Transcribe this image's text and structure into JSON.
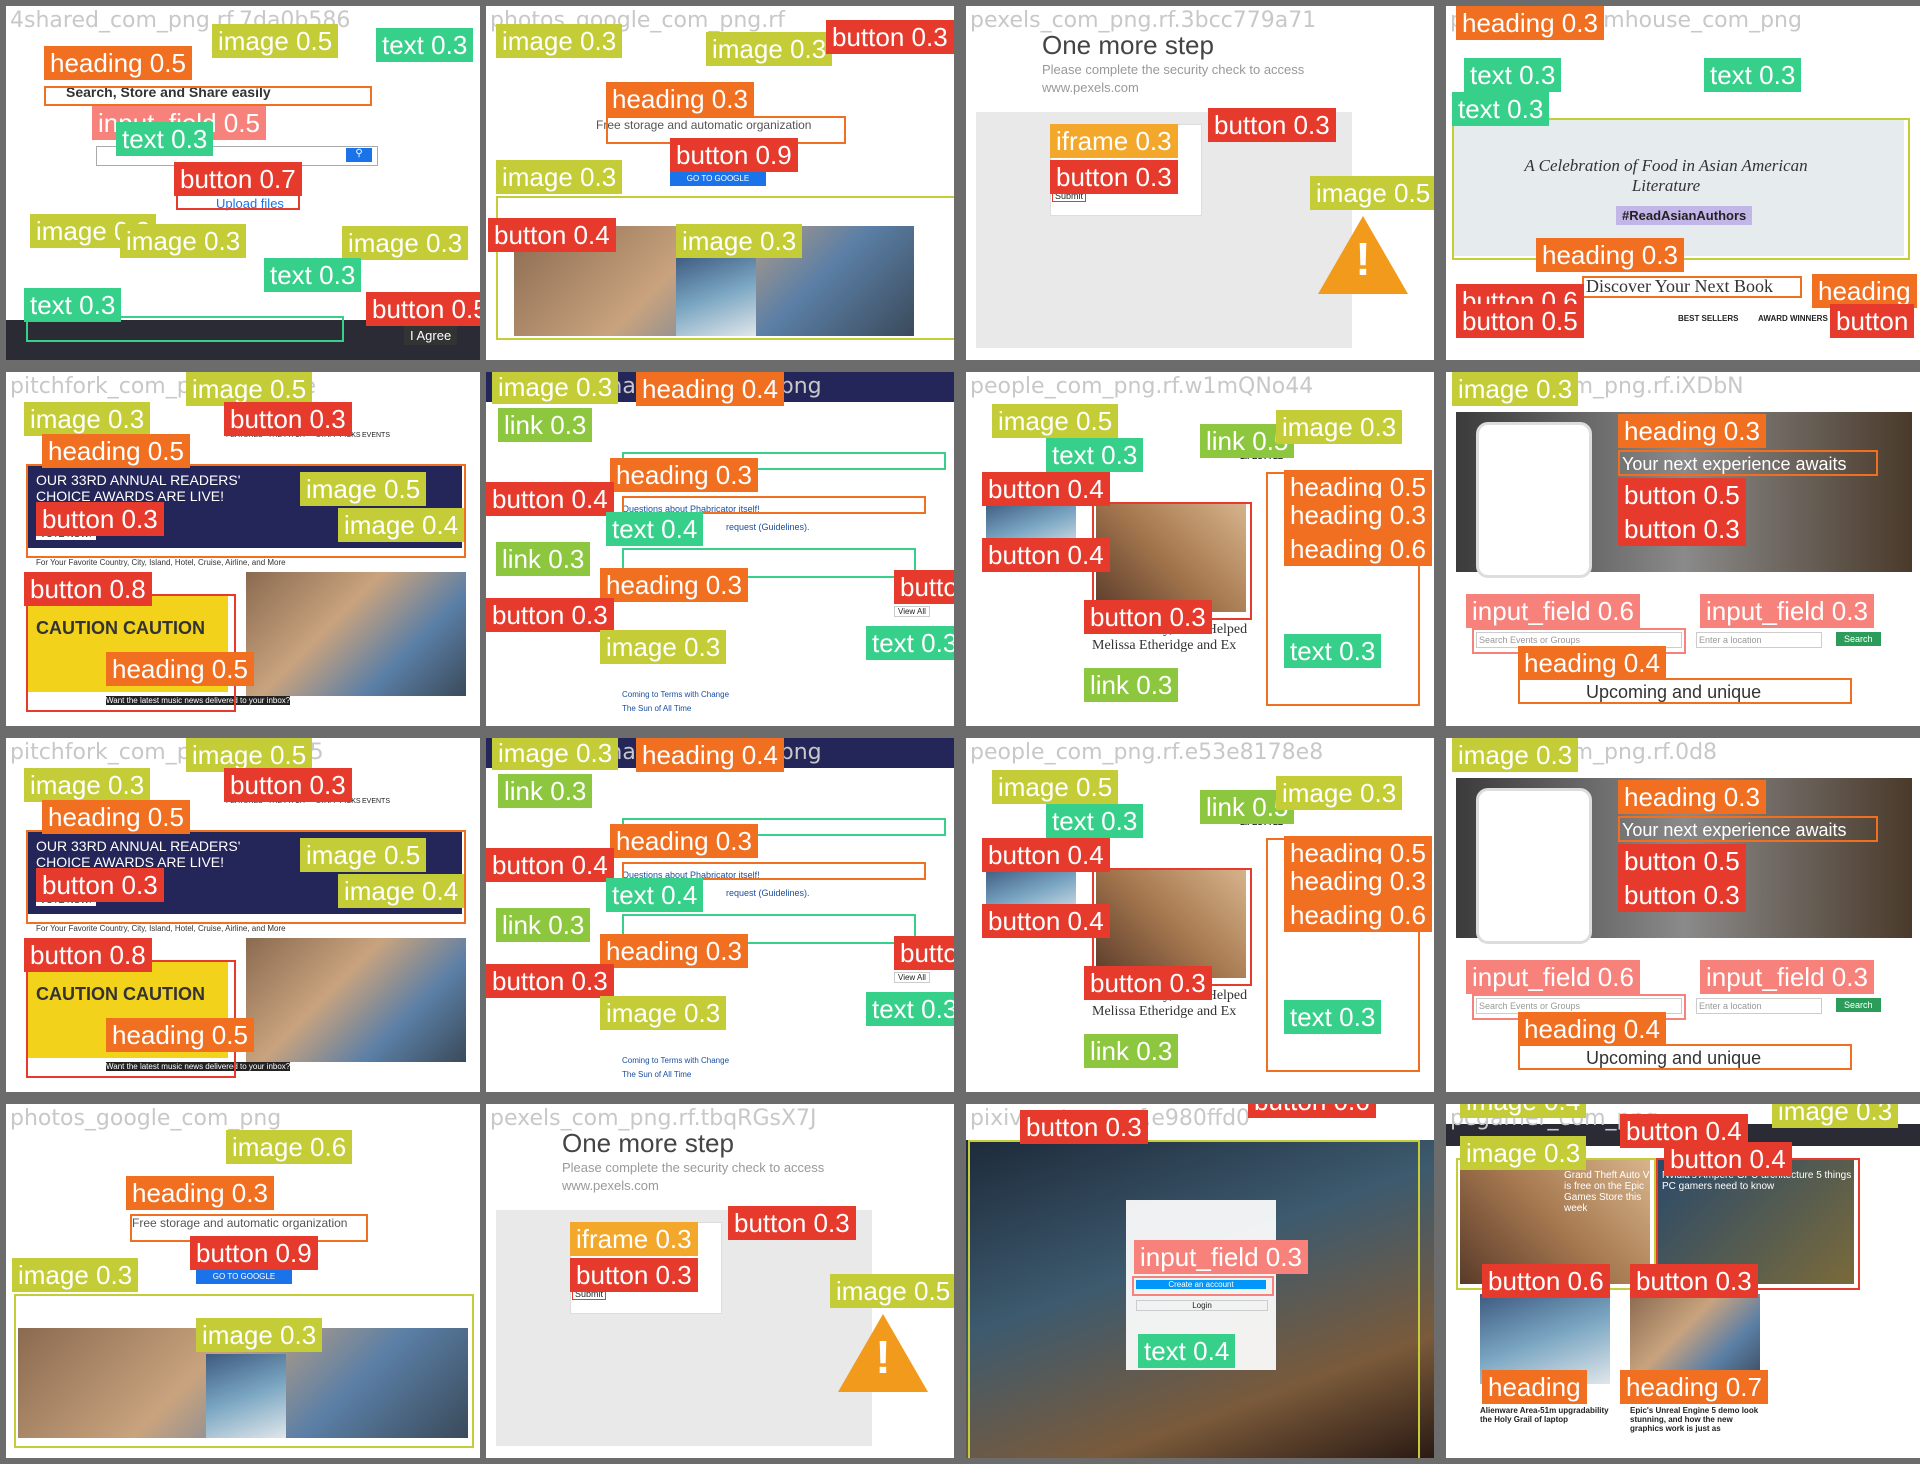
{
  "tiles": [
    {
      "watermark": "4shared_com_png.rf.7da0b586",
      "heading": "Search, Store and Share easily",
      "upload": "Upload files",
      "agree": "I Agree"
    },
    {
      "watermark": "photos_google_com_png.rf",
      "heading": "Free storage and automatic organization",
      "cta": "GO TO GOOGLE PHOTOS"
    },
    {
      "watermark": "pexels_com_png.rf.3bcc779a71",
      "title": "One more step",
      "subtitle": "Please complete the security check to access",
      "site": "www.pexels.com",
      "submit": "Submit"
    },
    {
      "watermark": "penguinrandomhouse_com_png",
      "banner": "A Celebration of Food in Asian American Literature",
      "tag": "#ReadAsianAuthors",
      "discover": "Discover Your Next Book",
      "nav": [
        "BEST SELLERS",
        "AWARD WINNERS"
      ]
    },
    {
      "watermark": "pitchfork_com_png.rf.XC7Le",
      "headline": "OUR 33RD ANNUAL READERS' CHOICE AWARDS ARE LIVE!",
      "vote": "VOTE NOW!",
      "sub": "For Your Favorite Country, City, Island, Hotel, Cruise, Airline, and More",
      "caution": "CAUTION CAUTION",
      "news": "Want the latest music news delivered to your inbox?",
      "nav": [
        "FEATURES",
        "THE PITCH",
        "STAFF PICKS",
        "EVENTS"
      ],
      "brand": "Traveler"
    },
    {
      "watermark": "phacility_phabricator_org_png",
      "line1": "Questions about Phabricator itself!",
      "line2": "request (Guidelines).",
      "viewall": "View All",
      "item1": "Coming to Terms with Change",
      "item2": "The Sun of All Time"
    },
    {
      "watermark": "people_com_png.rf.w1mQNo44",
      "names": "David Crosby, Who Helped Melissa Etheridge and Ex",
      "nav": "LIFESTYLE"
    },
    {
      "watermark": "meetup_com_png.rf.iXDbN",
      "heading": "Your next experience awaits",
      "upcoming": "Upcoming and unique",
      "search": "Search Events or Groups",
      "location": "Enter a location",
      "btn": "Search"
    },
    {
      "watermark": "pitchfork_com_png.rf.28f8c5",
      "headline": "OUR 33RD ANNUAL READERS' CHOICE AWARDS ARE LIVE!",
      "vote": "VOTE NOW!",
      "sub": "For Your Favorite Country, City, Island, Hotel, Cruise, Airline, and More",
      "caution": "CAUTION CAUTION",
      "news": "Want the latest music news delivered to your inbox?",
      "nav": [
        "FEATURES",
        "THE PITCH",
        "STAFF PICKS",
        "EVENTS"
      ],
      "brand": "Traveler"
    },
    {
      "watermark": "phacility_phabricator_org_png",
      "line1": "Questions about Phabricator itself!",
      "line2": "request (Guidelines).",
      "viewall": "View All",
      "item1": "Coming to Terms with Change",
      "item2": "The Sun of All Time"
    },
    {
      "watermark": "people_com_png.rf.e53e8178e8",
      "names": "David Crosby, Who Helped Melissa Etheridge and Ex",
      "nav": "LIFESTYLE"
    },
    {
      "watermark": "meetup_com_png.rf.0d8",
      "heading": "Your next experience awaits",
      "upcoming": "Upcoming and unique",
      "search": "Search Events or Groups",
      "location": "Enter a location",
      "btn": "Search"
    },
    {
      "watermark": "photos_google_com_png",
      "heading": "Free storage and automatic organization",
      "cta": "GO TO GOOGLE PHOTOS"
    },
    {
      "watermark": "pexels_com_png.rf.tbqRGsX7J",
      "title": "One more step",
      "subtitle": "Please complete the security check to access",
      "site": "www.pexels.com",
      "submit": "Submit"
    },
    {
      "watermark": "pixiv_net_png.rf.e980ffd0",
      "create": "Create an account",
      "login": "Login"
    },
    {
      "watermark": "pcgamer_com_png",
      "story1": "Grand Theft Auto V is free on the Epic Games Store this week",
      "story2": "Nvidia's Ampere GPU architecture 5 things PC gamers need to know",
      "story3": "Alienware Area-51m upgradability the Holy Grail of laptop",
      "story4": "Epic's Unreal Engine 5 demo look stunning, and how the new graphics work is just as"
    }
  ],
  "colors": {
    "button": "#e53a2c",
    "heading": "#f06f21",
    "image": "#c4cd38",
    "text": "#37d08b",
    "link": "#8dc63f",
    "input_field": "#f7827c",
    "iframe": "#f3a72b"
  },
  "labels": {
    "t0": [
      "heading 0.5",
      "image 0.5",
      "text 0.3",
      "input_field 0.5",
      "text 0.3",
      "button 0.7",
      "image 0.3",
      "image 0.3",
      "image 0.3",
      "text 0.3",
      "text 0.3",
      "button 0.5"
    ],
    "t1": [
      "image 0.3",
      "image 0.3",
      "heading 0.3",
      "button 0.9",
      "image 0.3",
      "image 0.3",
      "button 0.3",
      "button 0.4"
    ],
    "t2": [
      "iframe 0.3",
      "button 0.3",
      "button 0.3",
      "image 0.5"
    ],
    "t3": [
      "heading 0.3",
      "text 0.3",
      "text 0.3",
      "text 0.3",
      "heading 0.3",
      "button 0.6",
      "button 0.5",
      "heading",
      "button"
    ],
    "t4": [
      "image 0.5",
      "image 0.3",
      "button 0.3",
      "heading 0.5",
      "image 0.5",
      "button 0.3",
      "image 0.4",
      "button 0.8",
      "heading 0.5"
    ],
    "t5": [
      "image 0.3",
      "link 0.3",
      "heading 0.4",
      "heading 0.3",
      "button 0.4",
      "text 0.4",
      "link 0.3",
      "heading 0.3",
      "button 0.3",
      "image 0.3",
      "button 0.6",
      "text 0.3"
    ],
    "t6": [
      "image 0.5",
      "text 0.3",
      "link 0.5",
      "image 0.3",
      "button 0.4",
      "heading 0.5",
      "heading 0.3",
      "heading 0.6",
      "button 0.4",
      "button 0.3",
      "text 0.3",
      "link 0.3"
    ],
    "t7": [
      "image 0.3",
      "heading 0.3",
      "button 0.5",
      "button 0.3",
      "input_field 0.6",
      "input_field 0.3",
      "heading 0.4"
    ],
    "t12": [
      "image 0.6",
      "heading 0.3",
      "button 0.9",
      "image 0.3",
      "image 0.3"
    ],
    "t13": [
      "iframe 0.3",
      "button 0.3",
      "button 0.3",
      "image 0.5"
    ],
    "t14": [
      "button 0.3",
      "input_field 0.3",
      "text 0.4",
      "button 0.6"
    ],
    "t15": [
      "image 0.4",
      "button 0.4",
      "image 0.3",
      "button 0.4",
      "button 0.6",
      "button 0.3",
      "heading",
      "heading 0.7",
      "image 0.3"
    ]
  }
}
